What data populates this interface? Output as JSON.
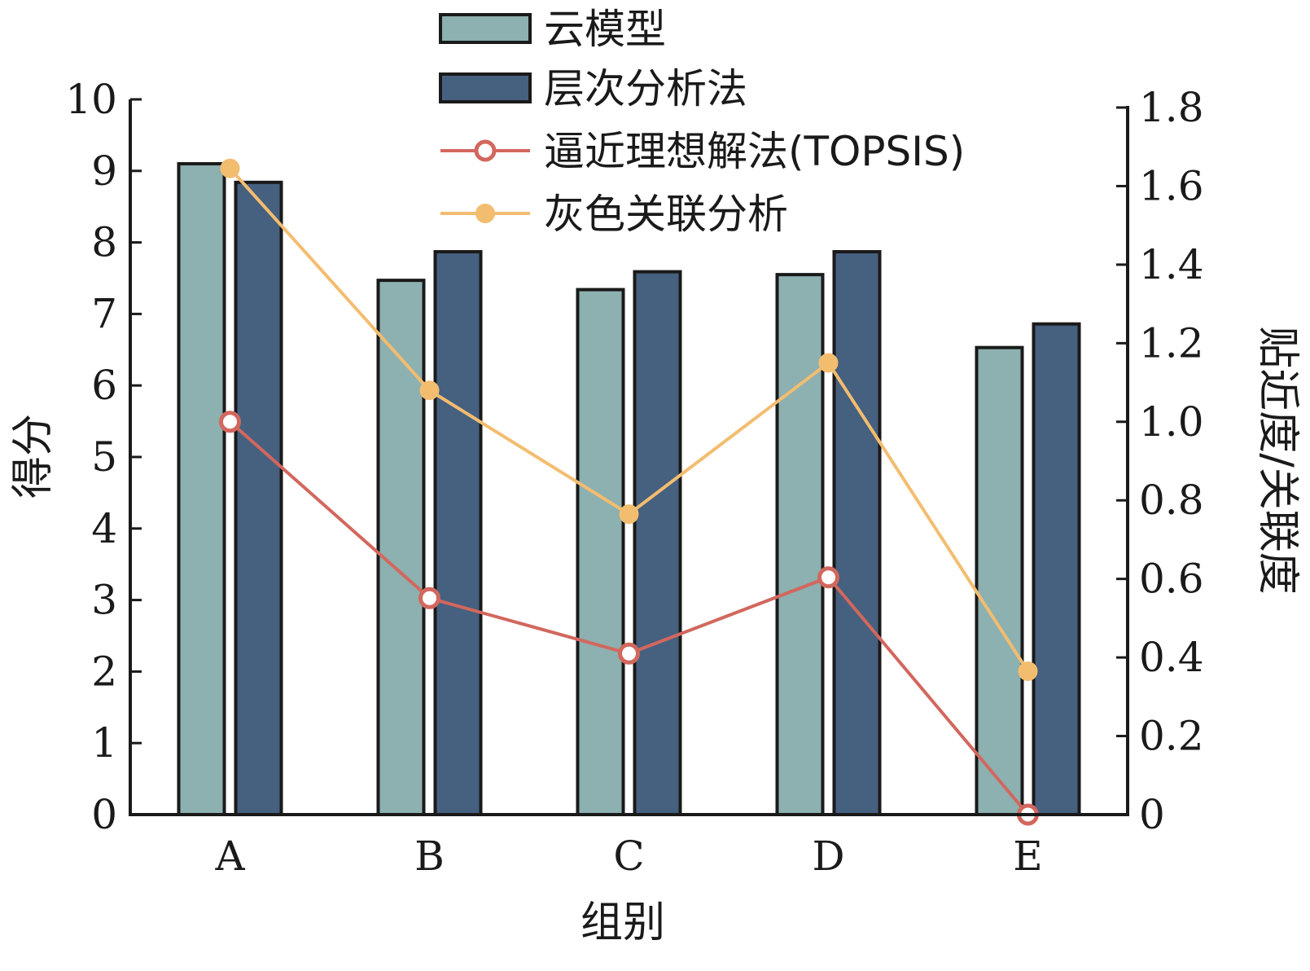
{
  "chart_data": {
    "type": "bar",
    "categories": [
      "A",
      "B",
      "C",
      "D",
      "E"
    ],
    "xlabel": "组别",
    "ylabel": "得分",
    "y2label": "贴近度/关联度",
    "ylim": [
      0,
      10
    ],
    "y2lim": [
      0,
      1.8
    ],
    "yticks": [
      "0",
      "1",
      "2",
      "3",
      "4",
      "5",
      "6",
      "7",
      "8",
      "9",
      "10"
    ],
    "y2ticks": [
      "0",
      "0.2",
      "0.4",
      "0.6",
      "0.8",
      "1.0",
      "1.2",
      "1.4",
      "1.6",
      "1.8"
    ],
    "grid": false,
    "legend_position": "top",
    "series": [
      {
        "name": "云模型",
        "kind": "bar",
        "axis": "left",
        "color": "#8db0b0",
        "values": [
          9.1,
          7.47,
          7.34,
          7.55,
          6.53
        ]
      },
      {
        "name": "层次分析法",
        "kind": "bar",
        "axis": "left",
        "color": "#46607f",
        "values": [
          8.84,
          7.87,
          7.59,
          7.87,
          6.86
        ]
      },
      {
        "name": "逼近理想解法(TOPSIS)",
        "kind": "line",
        "marker": "open-circle",
        "axis": "right",
        "color": "#d2675e",
        "values": [
          1.0,
          0.551,
          0.41,
          0.604,
          0.0
        ]
      },
      {
        "name": "灰色关联分析",
        "kind": "line",
        "marker": "filled-circle",
        "axis": "right",
        "color": "#f3bd70",
        "values": [
          1.645,
          1.08,
          0.765,
          1.15,
          0.365
        ]
      }
    ]
  }
}
